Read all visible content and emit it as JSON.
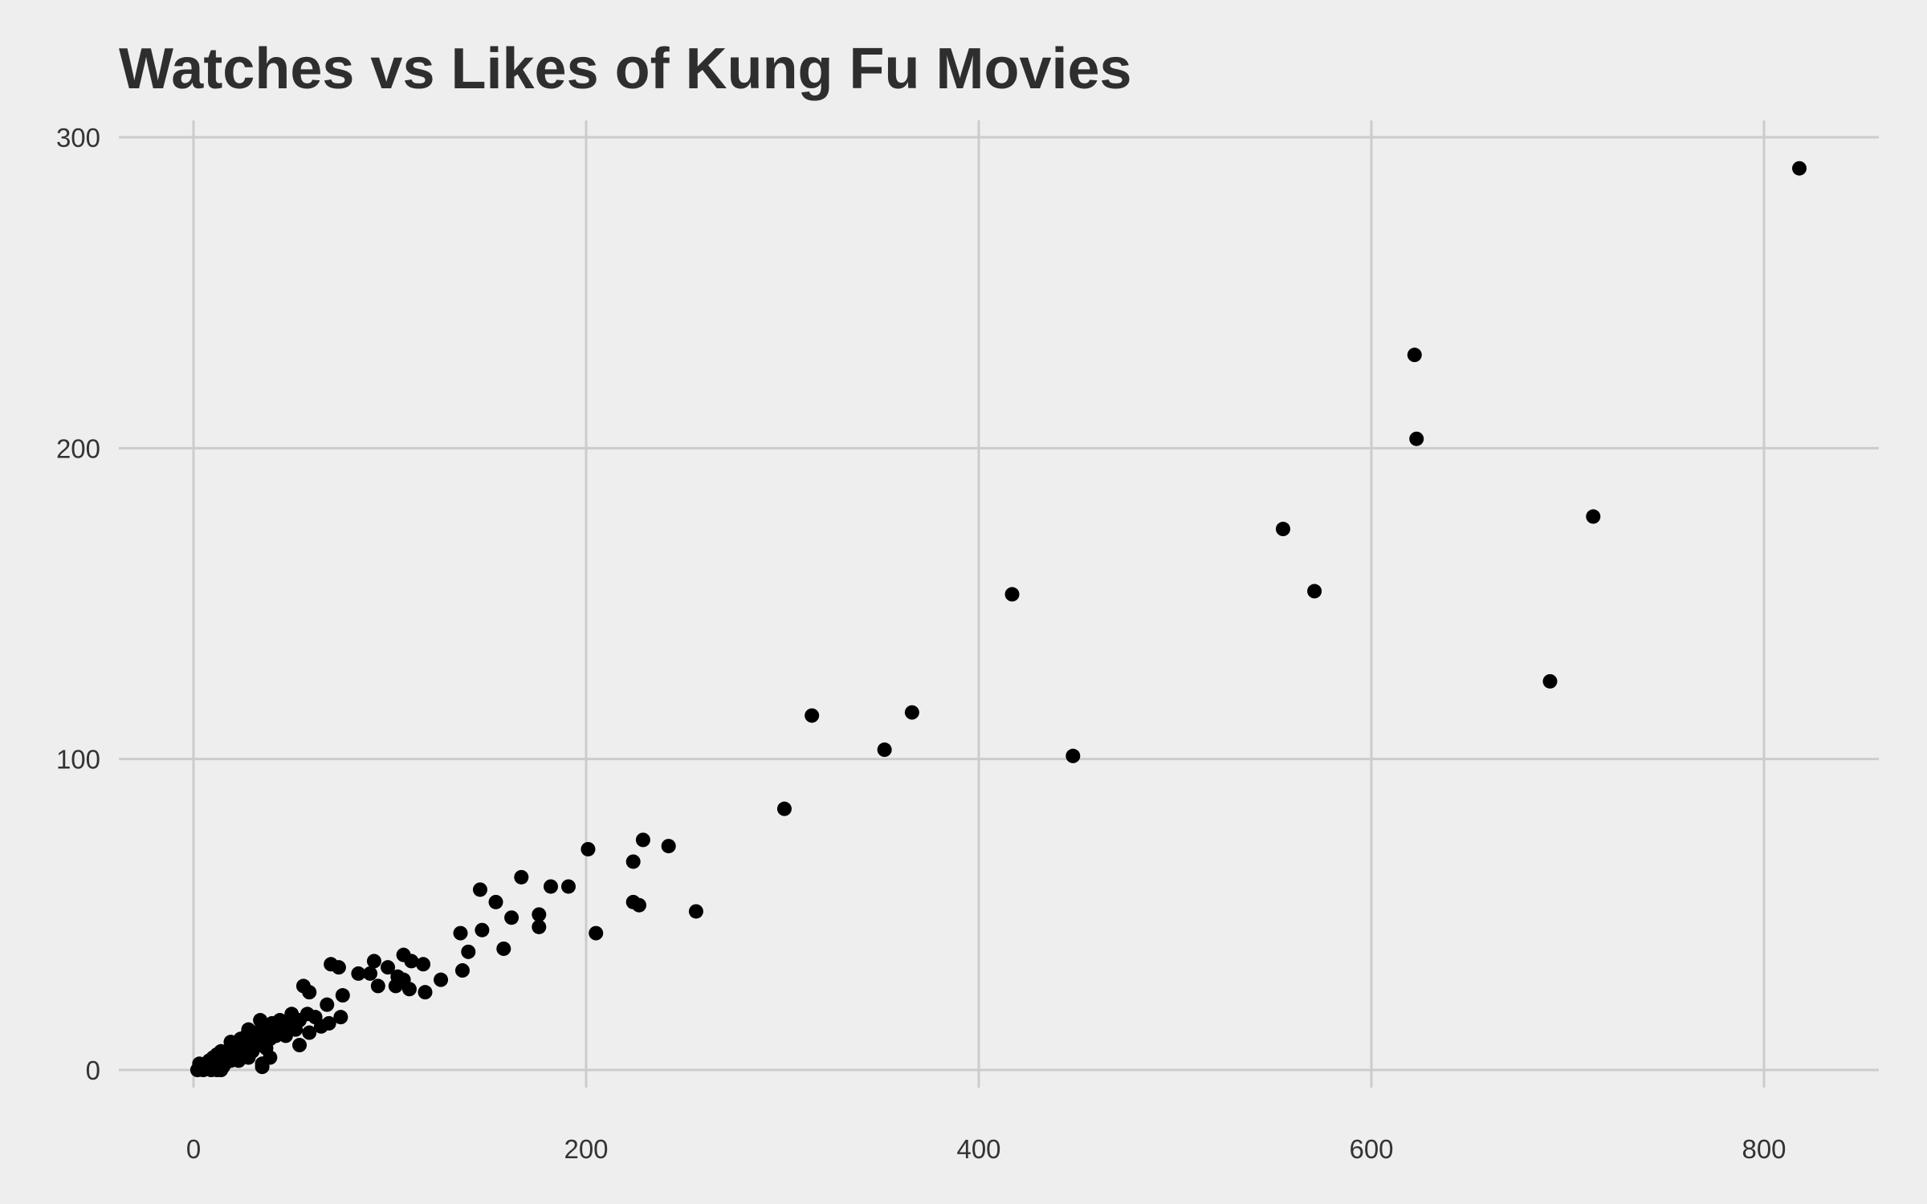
{
  "chart_data": {
    "type": "scatter",
    "title": "Watches vs Likes of Kung Fu Movies",
    "xlabel": "",
    "ylabel": "",
    "xlim": [
      -10,
      860
    ],
    "ylim": [
      -5,
      305
    ],
    "x_ticks": [
      0,
      200,
      400,
      600,
      800
    ],
    "y_ticks": [
      0,
      100,
      200,
      300
    ],
    "x_tick_labels": [
      "0",
      "200",
      "400",
      "600",
      "800"
    ],
    "y_tick_labels": [
      "0",
      "100",
      "200",
      "300"
    ],
    "grid": true,
    "legend": "none",
    "point_color": "#000000",
    "background": "#EEEEEE",
    "points": [
      {
        "x": 818,
        "y": 290
      },
      {
        "x": 622,
        "y": 230
      },
      {
        "x": 623,
        "y": 203
      },
      {
        "x": 713,
        "y": 178
      },
      {
        "x": 555,
        "y": 174
      },
      {
        "x": 571,
        "y": 154
      },
      {
        "x": 417,
        "y": 153
      },
      {
        "x": 691,
        "y": 125
      },
      {
        "x": 366,
        "y": 115
      },
      {
        "x": 315,
        "y": 114
      },
      {
        "x": 352,
        "y": 103
      },
      {
        "x": 448,
        "y": 101
      },
      {
        "x": 301,
        "y": 84
      },
      {
        "x": 229,
        "y": 74
      },
      {
        "x": 242,
        "y": 72
      },
      {
        "x": 201,
        "y": 71
      },
      {
        "x": 224,
        "y": 67
      },
      {
        "x": 167,
        "y": 62
      },
      {
        "x": 191,
        "y": 59
      },
      {
        "x": 182,
        "y": 59
      },
      {
        "x": 146,
        "y": 58
      },
      {
        "x": 154,
        "y": 54
      },
      {
        "x": 224,
        "y": 54
      },
      {
        "x": 227,
        "y": 53
      },
      {
        "x": 256,
        "y": 51
      },
      {
        "x": 176,
        "y": 50
      },
      {
        "x": 162,
        "y": 49
      },
      {
        "x": 176,
        "y": 46
      },
      {
        "x": 147,
        "y": 45
      },
      {
        "x": 136,
        "y": 44
      },
      {
        "x": 205,
        "y": 44
      },
      {
        "x": 158,
        "y": 39
      },
      {
        "x": 140,
        "y": 38
      },
      {
        "x": 107,
        "y": 37
      },
      {
        "x": 111,
        "y": 35
      },
      {
        "x": 92,
        "y": 35
      },
      {
        "x": 70,
        "y": 34
      },
      {
        "x": 117,
        "y": 34
      },
      {
        "x": 74,
        "y": 33
      },
      {
        "x": 99,
        "y": 33
      },
      {
        "x": 137,
        "y": 32
      },
      {
        "x": 84,
        "y": 31
      },
      {
        "x": 90,
        "y": 31
      },
      {
        "x": 104,
        "y": 30
      },
      {
        "x": 107,
        "y": 29
      },
      {
        "x": 126,
        "y": 29
      },
      {
        "x": 56,
        "y": 27
      },
      {
        "x": 94,
        "y": 27
      },
      {
        "x": 103,
        "y": 27
      },
      {
        "x": 110,
        "y": 26
      },
      {
        "x": 59,
        "y": 25
      },
      {
        "x": 118,
        "y": 25
      },
      {
        "x": 76,
        "y": 24
      },
      {
        "x": 68,
        "y": 21
      },
      {
        "x": 50,
        "y": 18
      },
      {
        "x": 58,
        "y": 18
      },
      {
        "x": 75,
        "y": 17
      },
      {
        "x": 62,
        "y": 17
      },
      {
        "x": 34,
        "y": 16
      },
      {
        "x": 44,
        "y": 16
      },
      {
        "x": 54,
        "y": 16
      },
      {
        "x": 40,
        "y": 15
      },
      {
        "x": 48,
        "y": 15
      },
      {
        "x": 69,
        "y": 15
      },
      {
        "x": 65,
        "y": 14
      },
      {
        "x": 28,
        "y": 13
      },
      {
        "x": 38,
        "y": 13
      },
      {
        "x": 45,
        "y": 13
      },
      {
        "x": 52,
        "y": 13
      },
      {
        "x": 32,
        "y": 12
      },
      {
        "x": 59,
        "y": 12
      },
      {
        "x": 27,
        "y": 11
      },
      {
        "x": 36,
        "y": 11
      },
      {
        "x": 42,
        "y": 11
      },
      {
        "x": 47,
        "y": 11
      },
      {
        "x": 24,
        "y": 10
      },
      {
        "x": 31,
        "y": 10
      },
      {
        "x": 39,
        "y": 10
      },
      {
        "x": 19,
        "y": 9
      },
      {
        "x": 29,
        "y": 9
      },
      {
        "x": 35,
        "y": 9
      },
      {
        "x": 25,
        "y": 8
      },
      {
        "x": 33,
        "y": 8
      },
      {
        "x": 54,
        "y": 8
      },
      {
        "x": 21,
        "y": 7
      },
      {
        "x": 27,
        "y": 7
      },
      {
        "x": 37,
        "y": 7
      },
      {
        "x": 14,
        "y": 6
      },
      {
        "x": 18,
        "y": 6
      },
      {
        "x": 23,
        "y": 6
      },
      {
        "x": 30,
        "y": 6
      },
      {
        "x": 12,
        "y": 5
      },
      {
        "x": 17,
        "y": 5
      },
      {
        "x": 22,
        "y": 5
      },
      {
        "x": 26,
        "y": 5
      },
      {
        "x": 10,
        "y": 4
      },
      {
        "x": 15,
        "y": 4
      },
      {
        "x": 20,
        "y": 4
      },
      {
        "x": 28,
        "y": 4
      },
      {
        "x": 39,
        "y": 4
      },
      {
        "x": 8,
        "y": 3
      },
      {
        "x": 13,
        "y": 3
      },
      {
        "x": 19,
        "y": 3
      },
      {
        "x": 23,
        "y": 3
      },
      {
        "x": 6,
        "y": 2
      },
      {
        "x": 11,
        "y": 2
      },
      {
        "x": 16,
        "y": 2
      },
      {
        "x": 35,
        "y": 2
      },
      {
        "x": 4,
        "y": 1
      },
      {
        "x": 7,
        "y": 1
      },
      {
        "x": 12,
        "y": 1
      },
      {
        "x": 15,
        "y": 1
      },
      {
        "x": 35,
        "y": 1
      },
      {
        "x": 2,
        "y": 0
      },
      {
        "x": 5,
        "y": 0
      },
      {
        "x": 9,
        "y": 0
      },
      {
        "x": 12,
        "y": 0
      },
      {
        "x": 14,
        "y": 0
      },
      {
        "x": 3,
        "y": 2
      },
      {
        "x": 8,
        "y": 1
      }
    ]
  }
}
